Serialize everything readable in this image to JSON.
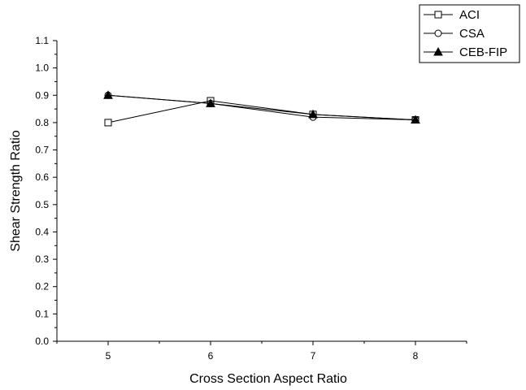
{
  "chart_data": {
    "type": "line",
    "title": "",
    "xlabel": "Cross Section Aspect Ratio",
    "ylabel": "Shear Strength Ratio",
    "x": [
      5,
      6,
      7,
      8
    ],
    "x_ticks": [
      "5",
      "6",
      "7",
      "8"
    ],
    "xlim": [
      4.5,
      8.5
    ],
    "ylim": [
      0.0,
      1.1
    ],
    "y_ticks": [
      "0.0",
      "0.1",
      "0.2",
      "0.3",
      "0.4",
      "0.5",
      "0.6",
      "0.7",
      "0.8",
      "0.9",
      "1.0",
      "1.1"
    ],
    "grid": false,
    "legend_position": "top-right, outside plot",
    "series": [
      {
        "name": "ACI",
        "marker": "square-open",
        "values": [
          0.8,
          0.88,
          0.83,
          0.81
        ]
      },
      {
        "name": "CSA",
        "marker": "circle-open",
        "values": [
          0.9,
          0.87,
          0.82,
          0.81
        ]
      },
      {
        "name": "CEB-FIP",
        "marker": "triangle-filled",
        "values": [
          0.9,
          0.87,
          0.83,
          0.81
        ]
      }
    ]
  }
}
